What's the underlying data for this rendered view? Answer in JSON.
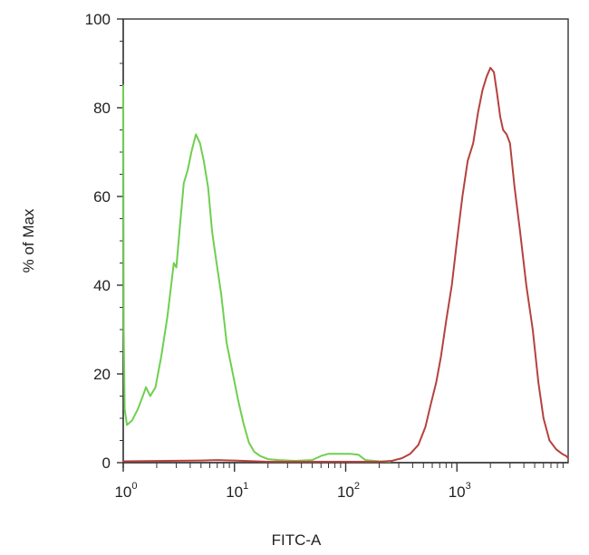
{
  "chart_data": {
    "type": "line",
    "xlabel": "FITC-A",
    "ylabel": "% of Max",
    "xscale": "log",
    "xlim": [
      1,
      10000
    ],
    "ylim": [
      0,
      100
    ],
    "yticks": [
      0,
      20,
      40,
      60,
      80,
      100
    ],
    "xticks": [
      {
        "value": 1,
        "base": "10",
        "exp": "0"
      },
      {
        "value": 10,
        "base": "10",
        "exp": "1"
      },
      {
        "value": 100,
        "base": "10",
        "exp": "2"
      },
      {
        "value": 1000,
        "base": "10",
        "exp": "3"
      }
    ],
    "grid": false,
    "legend": "none",
    "series": [
      {
        "color": "#6fcf4f",
        "points": [
          [
            1.0,
            85
          ],
          [
            1.01,
            30
          ],
          [
            1.03,
            12
          ],
          [
            1.08,
            8.5
          ],
          [
            1.2,
            9.5
          ],
          [
            1.35,
            12
          ],
          [
            1.5,
            15
          ],
          [
            1.6,
            17
          ],
          [
            1.75,
            15
          ],
          [
            1.95,
            17
          ],
          [
            2.2,
            24
          ],
          [
            2.5,
            33
          ],
          [
            2.7,
            40
          ],
          [
            2.85,
            45
          ],
          [
            3.0,
            44
          ],
          [
            3.2,
            52
          ],
          [
            3.5,
            63
          ],
          [
            3.8,
            66
          ],
          [
            4.1,
            70
          ],
          [
            4.5,
            74
          ],
          [
            4.9,
            72
          ],
          [
            5.3,
            68
          ],
          [
            5.8,
            62
          ],
          [
            6.3,
            52
          ],
          [
            6.9,
            45
          ],
          [
            7.6,
            38
          ],
          [
            8.5,
            27
          ],
          [
            9.5,
            21
          ],
          [
            10.8,
            14
          ],
          [
            12,
            9
          ],
          [
            13.5,
            4.5
          ],
          [
            15,
            2.5
          ],
          [
            17,
            1.5
          ],
          [
            20,
            0.8
          ],
          [
            25,
            0.6
          ],
          [
            35,
            0.4
          ],
          [
            50,
            0.6
          ],
          [
            60,
            1.5
          ],
          [
            70,
            2
          ],
          [
            90,
            2
          ],
          [
            110,
            2
          ],
          [
            130,
            1.8
          ],
          [
            150,
            0.6
          ],
          [
            200,
            0.3
          ],
          [
            250,
            0.2
          ]
        ]
      },
      {
        "color": "#b5423d",
        "points": [
          [
            1.0,
            0.3
          ],
          [
            5,
            0.5
          ],
          [
            7,
            0.6
          ],
          [
            12,
            0.4
          ],
          [
            20,
            0.2
          ],
          [
            200,
            0.2
          ],
          [
            260,
            0.4
          ],
          [
            320,
            1
          ],
          [
            380,
            2
          ],
          [
            450,
            4
          ],
          [
            520,
            8
          ],
          [
            580,
            13
          ],
          [
            650,
            18
          ],
          [
            720,
            24
          ],
          [
            800,
            32
          ],
          [
            900,
            40
          ],
          [
            1000,
            50
          ],
          [
            1120,
            60
          ],
          [
            1250,
            68
          ],
          [
            1400,
            72
          ],
          [
            1550,
            79
          ],
          [
            1700,
            84
          ],
          [
            1850,
            87
          ],
          [
            2000,
            89
          ],
          [
            2150,
            88
          ],
          [
            2300,
            83
          ],
          [
            2450,
            78
          ],
          [
            2600,
            75
          ],
          [
            2800,
            74
          ],
          [
            3000,
            72
          ],
          [
            3300,
            62
          ],
          [
            3700,
            52
          ],
          [
            4200,
            40
          ],
          [
            4800,
            30
          ],
          [
            5400,
            18
          ],
          [
            6000,
            10
          ],
          [
            6800,
            5
          ],
          [
            7800,
            3
          ],
          [
            8800,
            2
          ],
          [
            9600,
            1.5
          ],
          [
            10000,
            1
          ]
        ]
      }
    ]
  }
}
